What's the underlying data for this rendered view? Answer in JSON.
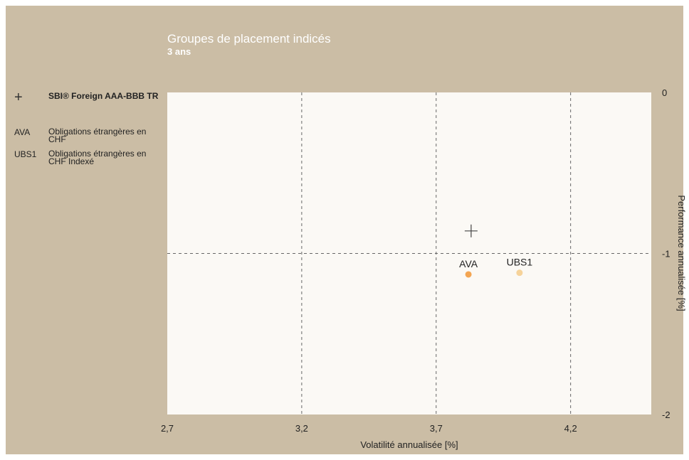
{
  "header": {
    "title": "Groupes de placement indicés",
    "subtitle": "3 ans"
  },
  "legend": [
    {
      "key": "+",
      "label": "SBI® Foreign AAA-BBB TR",
      "bold": true
    },
    {
      "key": "AVA",
      "label": "Obligations étrangères en CHF",
      "bold": false
    },
    {
      "key": "UBS1",
      "label": "Obligations étrangères en CHF Indexé",
      "bold": false
    }
  ],
  "colors": {
    "background": "#cbbda5",
    "plot": "#fbf9f5",
    "grid": "#666666",
    "ava": "#f3a552",
    "ubs1": "#f6d39a",
    "benchmark": "#444444"
  },
  "chart_data": {
    "type": "scatter",
    "xlabel": "Volatilité annualisée [%]",
    "ylabel": "Performance annualisée [%]",
    "xlim": [
      2.7,
      4.5
    ],
    "ylim": [
      -2,
      0
    ],
    "x_ticks": [
      "2,7",
      "3,2",
      "3,7",
      "4,2"
    ],
    "x_tick_values": [
      2.7,
      3.2,
      3.7,
      4.2
    ],
    "y_ticks": [
      "0",
      "-1",
      "-2"
    ],
    "y_tick_values": [
      0,
      -1,
      -2
    ],
    "grid": "dashed",
    "series": [
      {
        "name": "SBI® Foreign AAA-BBB TR",
        "marker": "plus",
        "x": 3.83,
        "y": -0.86,
        "label": ""
      },
      {
        "name": "Obligations étrangères en CHF",
        "marker": "circle",
        "x": 3.82,
        "y": -1.13,
        "label": "AVA"
      },
      {
        "name": "Obligations étrangères en CHF Indexé",
        "marker": "circle",
        "x": 4.01,
        "y": -1.12,
        "label": "UBS1"
      }
    ]
  }
}
